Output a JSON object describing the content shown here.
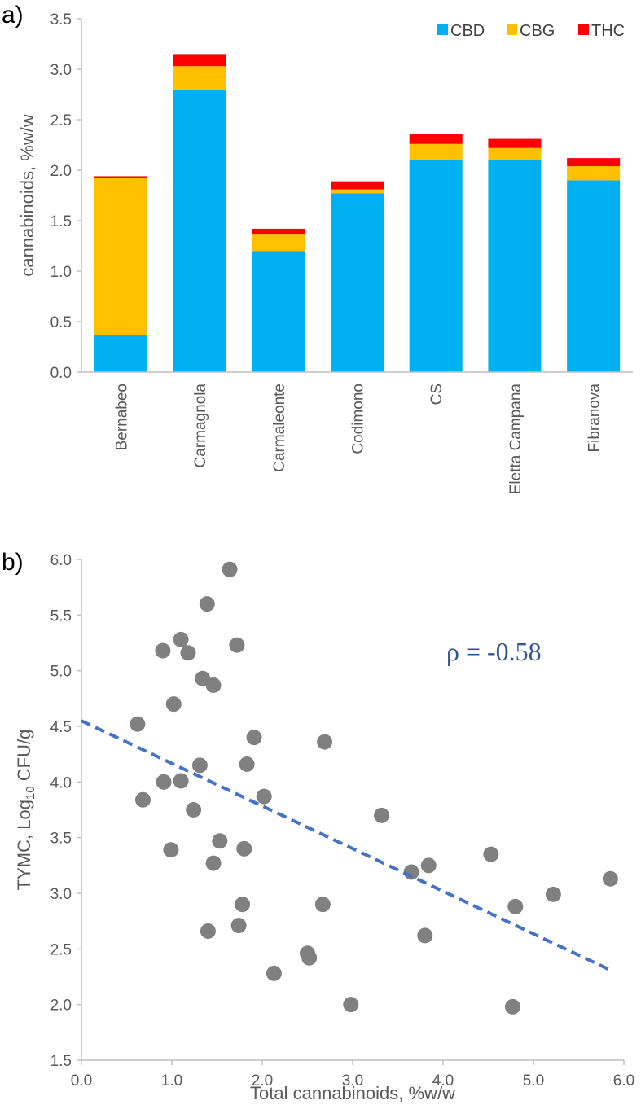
{
  "panels": {
    "a_label": "a)",
    "b_label": "b)"
  },
  "chart_data": [
    {
      "type": "bar",
      "stacked": true,
      "title": "",
      "xlabel": "",
      "ylabel": "cannabinoids, %w/w",
      "ylim": [
        0,
        3.5
      ],
      "yticks": [
        0.0,
        0.5,
        1.0,
        1.5,
        2.0,
        2.5,
        3.0,
        3.5
      ],
      "ytick_labels": [
        "0.0",
        "0.5",
        "1.0",
        "1.5",
        "2.0",
        "2.5",
        "3.0",
        "3.5"
      ],
      "grid": false,
      "legend_position": "top-right",
      "categories": [
        "Bernabeo",
        "Carmagnola",
        "Carmaleonte",
        "Codimono",
        "CS",
        "Eletta Campana",
        "Fibranova"
      ],
      "series": [
        {
          "name": "CBD",
          "color": "#00b0f0",
          "values": [
            0.37,
            2.8,
            1.2,
            1.77,
            2.1,
            2.1,
            1.9
          ]
        },
        {
          "name": "CBG",
          "color": "#ffc000",
          "values": [
            1.55,
            0.23,
            0.17,
            0.04,
            0.16,
            0.12,
            0.14
          ]
        },
        {
          "name": "THC",
          "color": "#ff0000",
          "values": [
            0.02,
            0.12,
            0.05,
            0.08,
            0.1,
            0.09,
            0.08
          ]
        }
      ]
    },
    {
      "type": "scatter",
      "title": "",
      "xlabel_prefix": "Total cannabinoids, %w/w",
      "ylabel_prefix": "TYMC, Log",
      "ylabel_sub": "10",
      "ylabel_suffix": " CFU/g",
      "xlim": [
        0,
        6
      ],
      "ylim": [
        1.5,
        6
      ],
      "xticks": [
        0,
        1,
        2,
        3,
        4,
        5,
        6
      ],
      "xtick_labels": [
        "0.0",
        "1.0",
        "2.0",
        "3.0",
        "4.0",
        "5.0",
        "6.0"
      ],
      "yticks": [
        1.5,
        2.0,
        2.5,
        3.0,
        3.5,
        4.0,
        4.5,
        5.0,
        5.5,
        6.0
      ],
      "ytick_labels": [
        "1.5",
        "2.0",
        "2.5",
        "3.0",
        "3.5",
        "4.0",
        "4.5",
        "5.0",
        "5.5",
        "6.0"
      ],
      "grid": false,
      "point_color": "#808080",
      "trend_color": "#4472c4",
      "annotation": "ρ = -0.58",
      "annotation_color": "#2f5597",
      "trendline": {
        "x": [
          0.0,
          5.85
        ],
        "y": [
          4.55,
          2.31
        ]
      },
      "points": [
        {
          "x": 0.62,
          "y": 4.52
        },
        {
          "x": 0.68,
          "y": 3.84
        },
        {
          "x": 0.9,
          "y": 5.18
        },
        {
          "x": 0.91,
          "y": 4.0
        },
        {
          "x": 0.99,
          "y": 3.39
        },
        {
          "x": 1.02,
          "y": 4.7
        },
        {
          "x": 1.1,
          "y": 5.28
        },
        {
          "x": 1.1,
          "y": 4.01
        },
        {
          "x": 1.18,
          "y": 5.16
        },
        {
          "x": 1.24,
          "y": 3.75
        },
        {
          "x": 1.31,
          "y": 4.15
        },
        {
          "x": 1.34,
          "y": 4.93
        },
        {
          "x": 1.39,
          "y": 5.6
        },
        {
          "x": 1.4,
          "y": 2.66
        },
        {
          "x": 1.46,
          "y": 4.87
        },
        {
          "x": 1.46,
          "y": 3.27
        },
        {
          "x": 1.53,
          "y": 3.47
        },
        {
          "x": 1.64,
          "y": 5.91
        },
        {
          "x": 1.72,
          "y": 5.23
        },
        {
          "x": 1.74,
          "y": 2.71
        },
        {
          "x": 1.78,
          "y": 2.9
        },
        {
          "x": 1.8,
          "y": 3.4
        },
        {
          "x": 1.83,
          "y": 4.16
        },
        {
          "x": 1.91,
          "y": 4.4
        },
        {
          "x": 2.02,
          "y": 3.87
        },
        {
          "x": 2.13,
          "y": 2.28
        },
        {
          "x": 2.5,
          "y": 2.46
        },
        {
          "x": 2.52,
          "y": 2.42
        },
        {
          "x": 2.67,
          "y": 2.9
        },
        {
          "x": 2.69,
          "y": 4.36
        },
        {
          "x": 2.98,
          "y": 2.0
        },
        {
          "x": 3.32,
          "y": 3.7
        },
        {
          "x": 3.65,
          "y": 3.19
        },
        {
          "x": 3.8,
          "y": 2.62
        },
        {
          "x": 3.84,
          "y": 3.25
        },
        {
          "x": 4.53,
          "y": 3.35
        },
        {
          "x": 4.77,
          "y": 1.98
        },
        {
          "x": 4.8,
          "y": 2.88
        },
        {
          "x": 5.22,
          "y": 2.99
        },
        {
          "x": 5.85,
          "y": 3.13
        }
      ]
    }
  ]
}
